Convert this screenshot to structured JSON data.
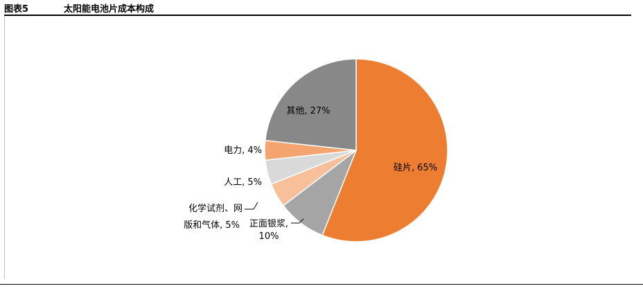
{
  "figure": {
    "label": "图表5",
    "title": "太阳能电池片成本构成"
  },
  "chart_data": {
    "type": "pie",
    "title": "",
    "categories": [
      "硅片",
      "正面银浆",
      "化学试剂、网版和气体",
      "人工",
      "电力",
      "其他"
    ],
    "values": [
      65,
      10,
      5,
      5,
      4,
      27
    ],
    "colors": [
      "#ED7D31",
      "#A5A5A5",
      "#F8C09A",
      "#D9D9D9",
      "#F4A46E",
      "#888888"
    ],
    "labels": [
      [
        "硅片, 65%"
      ],
      [
        "正面银浆,",
        "10%"
      ],
      [
        "化学试剂、网",
        "版和气体, 5%"
      ],
      [
        "人工, 5%"
      ],
      [
        "电力, 4%"
      ],
      [
        "其他, 27%"
      ]
    ],
    "start_angle_deg": 0,
    "direction": "clockwise"
  }
}
